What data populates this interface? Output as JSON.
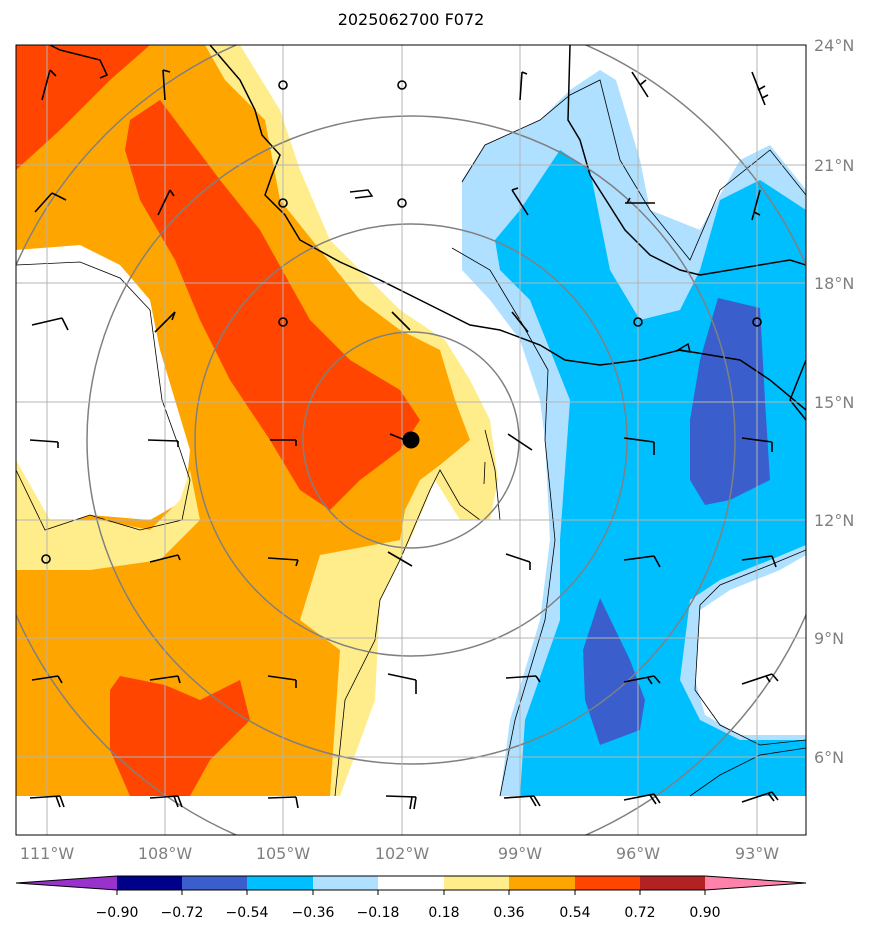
{
  "title": "2025062700 F072",
  "colors": {
    "neg_090": "#9932cc",
    "neg_072": "#00008b",
    "neg_054": "#3a5fcd",
    "neg_036": "#00bfff",
    "neg_018": "#b0e0ff",
    "zero": "#ffffff",
    "pos_018": "#ffec8b",
    "pos_036": "#ffa500",
    "pos_054": "#ff4500",
    "pos_072": "#b22222",
    "pos_090": "#ff82ab",
    "coast": "#000000",
    "contour": "#000000",
    "rings": "#808080",
    "grid": "#b4b4b4"
  },
  "map": {
    "lon_labels": [
      "111°W",
      "108°W",
      "105°W",
      "102°W",
      "99°W",
      "96°W",
      "93°W"
    ],
    "lat_labels": [
      "24°N",
      "21°N",
      "18°N",
      "15°N",
      "12°N",
      "9°N",
      "6°N"
    ],
    "center_marker": "storm-center",
    "range_rings": 4
  },
  "colorbar": {
    "ticks": [
      "−0.90",
      "−0.72",
      "−0.54",
      "−0.36",
      "−0.18",
      "0.18",
      "0.36",
      "0.54",
      "0.72",
      "0.90"
    ]
  }
}
